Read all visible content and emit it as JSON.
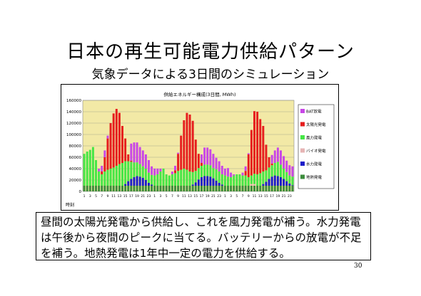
{
  "slide": {
    "title": "日本の再生可能電力供給パターン",
    "subtitle": "気象データによる3日間のシミュレーション",
    "note": "昼間の太陽光発電から供給し、これを風力発電が補う。水力発電は午後から夜間のピークに当てる。バッテリーからの放電が不足を補う。地熱発電は1年中一定の電力を供給する。",
    "page_number": "30"
  },
  "chart_data": {
    "type": "bar",
    "stacked": true,
    "title": "供給エネルギー構成(3日間, MWh)",
    "xlabel": "時刻",
    "ylim": [
      0,
      160000
    ],
    "yticks": [
      "0",
      "20000",
      "40000",
      "60000",
      "80000",
      "100000",
      "120000",
      "140000",
      "160000"
    ],
    "categories": [
      "1",
      "2",
      "3",
      "4",
      "5",
      "6",
      "7",
      "8",
      "9",
      "10",
      "11",
      "12",
      "13",
      "14",
      "15",
      "16",
      "17",
      "18",
      "19",
      "20",
      "21",
      "22",
      "23",
      "24",
      "1",
      "2",
      "3",
      "4",
      "5",
      "6",
      "7",
      "8",
      "9",
      "10",
      "11",
      "12",
      "13",
      "14",
      "15",
      "16",
      "17",
      "18",
      "19",
      "20",
      "21",
      "22",
      "23",
      "24",
      "1",
      "2",
      "3",
      "4",
      "5",
      "6",
      "7",
      "8",
      "9",
      "10",
      "11",
      "12",
      "13",
      "14",
      "15",
      "16",
      "17",
      "18",
      "19",
      "20",
      "21",
      "22",
      "23",
      "24"
    ],
    "tick_labels": [
      "1",
      "3",
      "5",
      "7",
      "9",
      "11",
      "13",
      "15",
      "17",
      "19",
      "21",
      "23",
      "1",
      "3",
      "5",
      "7",
      "9",
      "11",
      "13",
      "15",
      "17",
      "19",
      "21",
      "23",
      "1",
      "3",
      "5",
      "7",
      "9",
      "11",
      "13",
      "15",
      "17",
      "19",
      "21",
      "23"
    ],
    "plot_background": "#f2e9a6",
    "grid": true,
    "legend_position": "right",
    "series": [
      {
        "name": "地熱発電",
        "color": "#3c8c3c",
        "values": [
          10000,
          10000,
          10000,
          10000,
          10000,
          10000,
          10000,
          10000,
          10000,
          10000,
          10000,
          10000,
          10000,
          10000,
          10000,
          10000,
          10000,
          10000,
          10000,
          10000,
          10000,
          10000,
          10000,
          10000,
          10000,
          10000,
          10000,
          10000,
          10000,
          10000,
          10000,
          10000,
          10000,
          10000,
          10000,
          10000,
          10000,
          10000,
          10000,
          10000,
          10000,
          10000,
          10000,
          10000,
          10000,
          10000,
          10000,
          10000,
          10000,
          10000,
          10000,
          10000,
          10000,
          10000,
          10000,
          10000,
          10000,
          10000,
          10000,
          10000,
          10000,
          10000,
          10000,
          10000,
          10000,
          10000,
          10000,
          10000,
          10000,
          10000,
          10000,
          10000
        ]
      },
      {
        "name": "水力発電",
        "color": "#1c1cc8",
        "values": [
          0,
          0,
          0,
          0,
          0,
          0,
          0,
          0,
          0,
          0,
          0,
          0,
          0,
          0,
          3000,
          8000,
          12000,
          15000,
          17000,
          16000,
          14000,
          10000,
          5000,
          2000,
          0,
          0,
          0,
          0,
          0,
          0,
          0,
          0,
          0,
          0,
          0,
          0,
          0,
          2000,
          6000,
          11000,
          15000,
          17000,
          17000,
          16000,
          13000,
          9000,
          5000,
          2000,
          0,
          0,
          0,
          0,
          0,
          0,
          0,
          0,
          0,
          0,
          0,
          0,
          0,
          3000,
          7000,
          12000,
          16000,
          18000,
          17000,
          15000,
          12000,
          8000,
          4000,
          1000
        ]
      },
      {
        "name": "バイオ発電",
        "color": "#e6b4b4",
        "values": [
          0,
          0,
          0,
          0,
          0,
          0,
          0,
          0,
          0,
          0,
          0,
          0,
          0,
          0,
          0,
          0,
          0,
          0,
          0,
          0,
          0,
          0,
          0,
          0,
          0,
          0,
          0,
          0,
          0,
          0,
          0,
          0,
          0,
          0,
          0,
          0,
          0,
          0,
          0,
          0,
          0,
          0,
          0,
          0,
          0,
          0,
          0,
          0,
          0,
          0,
          0,
          0,
          0,
          0,
          0,
          0,
          0,
          3000,
          3000,
          0,
          0,
          0,
          0,
          0,
          0,
          0,
          0,
          0,
          0,
          0,
          0,
          0
        ]
      },
      {
        "name": "風力発電",
        "color": "#46e646",
        "values": [
          56000,
          60000,
          63000,
          68000,
          45000,
          25000,
          20000,
          25000,
          28000,
          30000,
          32000,
          35000,
          38000,
          40000,
          40000,
          35000,
          30000,
          26000,
          24000,
          22000,
          20000,
          20000,
          18000,
          17000,
          18000,
          20000,
          25000,
          30000,
          20000,
          18000,
          20000,
          22000,
          26000,
          28000,
          30000,
          28000,
          25000,
          22000,
          20000,
          20000,
          20000,
          20000,
          20000,
          20000,
          18000,
          20000,
          20000,
          18000,
          18000,
          16000,
          15000,
          18000,
          20000,
          20000,
          18000,
          18000,
          15000,
          15000,
          18000,
          20000,
          22000,
          22000,
          20000,
          20000,
          20000,
          22000,
          25000,
          22000,
          18000,
          16000,
          14000,
          15000
        ]
      },
      {
        "name": "太陽光発電",
        "color": "#e61e1e",
        "values": [
          0,
          0,
          0,
          0,
          0,
          0,
          5000,
          25000,
          55000,
          80000,
          95000,
          100000,
          90000,
          65000,
          40000,
          12000,
          2000,
          0,
          0,
          0,
          0,
          0,
          0,
          0,
          0,
          0,
          0,
          0,
          0,
          0,
          0,
          5000,
          30000,
          60000,
          85000,
          100000,
          100000,
          90000,
          55000,
          25000,
          5000,
          0,
          0,
          0,
          0,
          0,
          0,
          0,
          0,
          0,
          0,
          0,
          0,
          0,
          0,
          8000,
          40000,
          80000,
          110000,
          110000,
          95000,
          80000,
          45000,
          18000,
          3000,
          0,
          0,
          0,
          0,
          0,
          0,
          0
        ]
      },
      {
        "name": "BAT放電",
        "color": "#c846e6",
        "values": [
          0,
          0,
          0,
          0,
          0,
          5000,
          10000,
          12000,
          5000,
          0,
          0,
          0,
          0,
          0,
          0,
          0,
          30000,
          35000,
          35000,
          30000,
          28000,
          25000,
          22000,
          15000,
          12000,
          10000,
          5000,
          0,
          0,
          0,
          5000,
          8000,
          2000,
          0,
          0,
          0,
          0,
          0,
          0,
          0,
          15000,
          30000,
          30000,
          28000,
          25000,
          20000,
          18000,
          15000,
          12000,
          15000,
          8000,
          2000,
          0,
          0,
          5000,
          8000,
          2000,
          0,
          0,
          0,
          0,
          0,
          0,
          0,
          15000,
          22000,
          25000,
          25000,
          22000,
          20000,
          18000,
          18000
        ]
      }
    ]
  }
}
